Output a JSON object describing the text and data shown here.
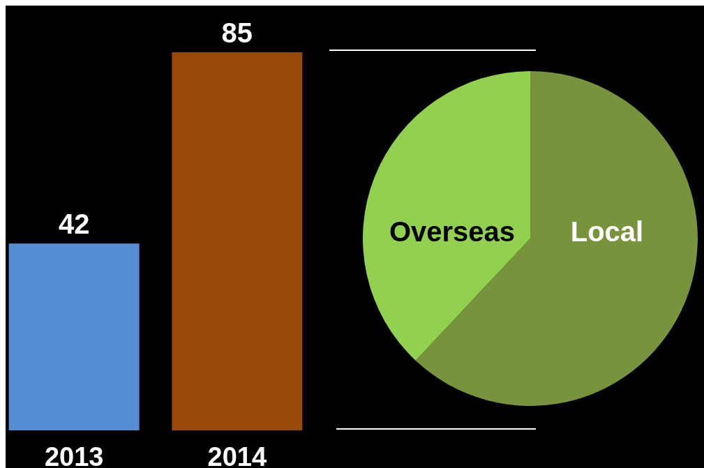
{
  "chart_data": [
    {
      "type": "bar",
      "categories": [
        "2013",
        "2014"
      ],
      "values": [
        42,
        85
      ],
      "colors": [
        "#558ed5",
        "#984807"
      ],
      "data_labels": true
    },
    {
      "type": "pie",
      "categories": [
        "Local",
        "Overseas"
      ],
      "values": [
        62,
        38
      ],
      "colors": [
        "#77933c",
        "#92d050"
      ]
    }
  ]
}
